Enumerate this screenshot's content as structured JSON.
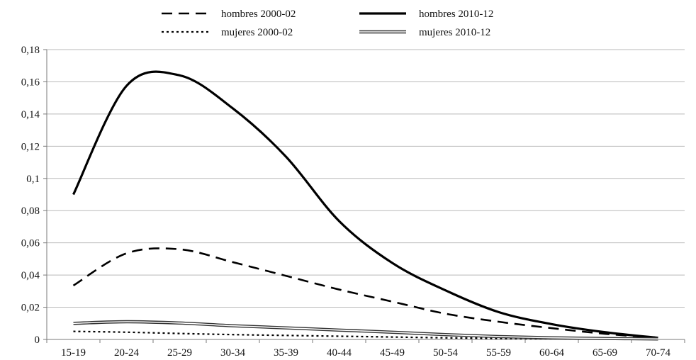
{
  "chart_data": {
    "type": "line",
    "categories": [
      "15-19",
      "20-24",
      "25-29",
      "30-34",
      "35-39",
      "40-44",
      "45-49",
      "50-54",
      "55-59",
      "60-64",
      "65-69",
      "70-74"
    ],
    "series": [
      {
        "name": "hombres 2000-02",
        "style": "dashed",
        "values": [
          0.0335,
          0.0535,
          0.056,
          0.048,
          0.0395,
          0.031,
          0.0235,
          0.016,
          0.011,
          0.007,
          0.0035,
          0.001
        ]
      },
      {
        "name": "hombres 2010-12",
        "style": "solid-thick",
        "values": [
          0.09,
          0.1575,
          0.164,
          0.1435,
          0.1135,
          0.0735,
          0.0475,
          0.0305,
          0.017,
          0.0095,
          0.0045,
          0.001
        ]
      },
      {
        "name": "mujeres 2000-02",
        "style": "dotted",
        "values": [
          0.005,
          0.0045,
          0.0037,
          0.003,
          0.0025,
          0.002,
          0.0015,
          0.001,
          0.0007,
          0.0005,
          0.0003,
          0.0002
        ]
      },
      {
        "name": "mujeres 2010-12",
        "style": "double",
        "values": [
          0.01,
          0.011,
          0.0102,
          0.0085,
          0.0072,
          0.0058,
          0.0045,
          0.003,
          0.0018,
          0.001,
          0.0006,
          0.0003
        ]
      }
    ],
    "ylim": [
      0,
      0.18
    ],
    "yticks": [
      "0",
      "0,02",
      "0,04",
      "0,06",
      "0,08",
      "0,1",
      "0,12",
      "0,14",
      "0,16",
      "0,18"
    ],
    "grid": true,
    "legend_position": "top",
    "title": "",
    "xlabel": "",
    "ylabel": "",
    "colors": {
      "line": "#000000",
      "grid": "#b9b9b9"
    }
  }
}
